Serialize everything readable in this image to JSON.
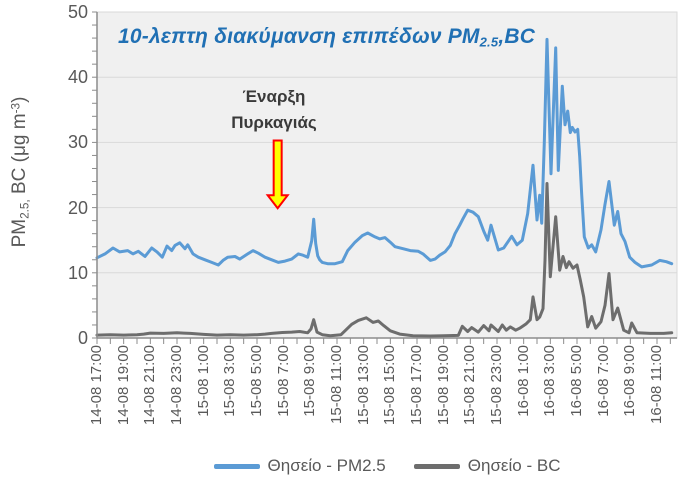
{
  "title": {
    "prefix": "10-λεπτη διακύμανση επιπέδων PM",
    "subscript": "2.5",
    "suffix": ",BC"
  },
  "annotation": {
    "line1": "Έναρξη",
    "line2": "Πυρκαγιάς"
  },
  "y_axis": {
    "label_prefix": "PM",
    "label_subscript": "2.5,",
    "label_mid": " BC  (μg m",
    "label_superscript": "-3",
    "label_close": ")",
    "tick_labels": [
      "0",
      "10",
      "20",
      "30",
      "40",
      "50"
    ],
    "minor_tick_step": 2,
    "max": 50
  },
  "x_axis": {
    "labels": [
      "14-08 17:00",
      "14-08 19:00",
      "14-08 21:00",
      "14-08 23:00",
      "15-08 1:00",
      "15-08 3:00",
      "15-08 5:00",
      "15-08 7:00",
      "15-08 9:00",
      "15-08 11:00",
      "15-08 13:00",
      "15-08 15:00",
      "15-08 17:00",
      "15-08 19:00",
      "15-08 21:00",
      "15-08 23:00",
      "16-08 1:00",
      "16-08 3:00",
      "16-08 5:00",
      "16-08 7:00",
      "16-08 9:00",
      "16-08 11:00"
    ],
    "label_step_hours": 2,
    "minor_tick_step_hours": 1
  },
  "legend": {
    "items": [
      {
        "label": "Θησείο - PM2.5",
        "color": "#5B9BD5"
      },
      {
        "label": "Θησείο - BC",
        "color": "#6D6D6D"
      }
    ]
  },
  "colors": {
    "pm25_line": "#5B9BD5",
    "bc_line": "#6D6D6D",
    "title_text": "#2070B4",
    "plot_background": "#F0F0F0",
    "gridline": "#D9D9D9",
    "axis_line": "#8C8C8C",
    "tick_label": "#595959",
    "annotation_text": "#3A3A3A",
    "arrow_fill": "#FFFF00",
    "arrow_stroke": "#FF0000"
  },
  "chart_data": {
    "type": "line",
    "title": "10-λεπτη διακύμανση επιπέδων PM2.5,BC",
    "ylabel": "PM2.5, BC (μg m-3)",
    "x_unit": "hours since 14-08 17:00 (10-min data)",
    "x_range": [
      0,
      43.5
    ],
    "ylim": [
      0,
      50
    ],
    "grid": "horizontal",
    "legend_position": "bottom",
    "series": [
      {
        "name": "Θησείο - PM2.5",
        "color": "#5B9BD5",
        "points": [
          [
            0,
            12.3
          ],
          [
            0.6,
            12.9
          ],
          [
            1.2,
            13.8
          ],
          [
            1.7,
            13.2
          ],
          [
            2.3,
            13.4
          ],
          [
            2.7,
            12.9
          ],
          [
            3.1,
            13.3
          ],
          [
            3.6,
            12.5
          ],
          [
            4.1,
            13.8
          ],
          [
            4.5,
            13.2
          ],
          [
            4.9,
            12.4
          ],
          [
            5.25,
            14.1
          ],
          [
            5.6,
            13.4
          ],
          [
            5.85,
            14.2
          ],
          [
            6.2,
            14.6
          ],
          [
            6.6,
            13.7
          ],
          [
            6.8,
            14.3
          ],
          [
            7.2,
            12.9
          ],
          [
            7.6,
            12.4
          ],
          [
            8.1,
            12.0
          ],
          [
            8.6,
            11.6
          ],
          [
            9.1,
            11.2
          ],
          [
            9.45,
            11.9
          ],
          [
            9.8,
            12.4
          ],
          [
            10.35,
            12.5
          ],
          [
            10.7,
            12.1
          ],
          [
            11.3,
            12.9
          ],
          [
            11.7,
            13.4
          ],
          [
            12.1,
            13.0
          ],
          [
            12.6,
            12.4
          ],
          [
            13.1,
            12.0
          ],
          [
            13.6,
            11.6
          ],
          [
            14.1,
            11.8
          ],
          [
            14.6,
            12.1
          ],
          [
            15.1,
            12.9
          ],
          [
            15.45,
            12.7
          ],
          [
            15.8,
            12.4
          ],
          [
            16.1,
            14.9
          ],
          [
            16.25,
            18.2
          ],
          [
            16.4,
            14.5
          ],
          [
            16.55,
            12.6
          ],
          [
            16.7,
            12.0
          ],
          [
            16.9,
            11.6
          ],
          [
            17.3,
            11.4
          ],
          [
            17.85,
            11.4
          ],
          [
            18.4,
            11.7
          ],
          [
            18.8,
            13.4
          ],
          [
            19.35,
            14.7
          ],
          [
            19.9,
            15.7
          ],
          [
            20.3,
            16.1
          ],
          [
            20.85,
            15.5
          ],
          [
            21.2,
            15.2
          ],
          [
            21.6,
            15.4
          ],
          [
            22.0,
            14.7
          ],
          [
            22.35,
            14.0
          ],
          [
            22.95,
            13.7
          ],
          [
            23.5,
            13.4
          ],
          [
            24.1,
            13.3
          ],
          [
            24.45,
            12.9
          ],
          [
            25.0,
            11.9
          ],
          [
            25.35,
            12.1
          ],
          [
            25.7,
            12.7
          ],
          [
            26.1,
            13.2
          ],
          [
            26.5,
            14.2
          ],
          [
            26.85,
            16.0
          ],
          [
            27.2,
            17.3
          ],
          [
            27.45,
            18.3
          ],
          [
            27.8,
            19.6
          ],
          [
            28.2,
            19.3
          ],
          [
            28.6,
            18.6
          ],
          [
            29.0,
            16.4
          ],
          [
            29.3,
            15.0
          ],
          [
            29.55,
            17.3
          ],
          [
            30.1,
            13.5
          ],
          [
            30.5,
            13.8
          ],
          [
            31.1,
            15.6
          ],
          [
            31.5,
            14.3
          ],
          [
            31.9,
            15.0
          ],
          [
            32.3,
            19.1
          ],
          [
            32.7,
            26.5
          ],
          [
            33.0,
            18.1
          ],
          [
            33.2,
            21.9
          ],
          [
            33.35,
            17.6
          ],
          [
            33.55,
            30.0
          ],
          [
            33.75,
            45.8
          ],
          [
            34.05,
            25.2
          ],
          [
            34.4,
            44.5
          ],
          [
            34.6,
            25.7
          ],
          [
            34.9,
            38.6
          ],
          [
            35.1,
            32.7
          ],
          [
            35.3,
            34.8
          ],
          [
            35.5,
            31.5
          ],
          [
            35.65,
            32.3
          ],
          [
            35.85,
            31.6
          ],
          [
            36.05,
            32.0
          ],
          [
            36.2,
            27.8
          ],
          [
            36.35,
            22.0
          ],
          [
            36.55,
            15.5
          ],
          [
            36.85,
            13.8
          ],
          [
            37.1,
            14.3
          ],
          [
            37.4,
            13.2
          ],
          [
            37.8,
            16.6
          ],
          [
            38.1,
            20.5
          ],
          [
            38.4,
            24.0
          ],
          [
            38.8,
            17.3
          ],
          [
            39.05,
            19.4
          ],
          [
            39.3,
            16.0
          ],
          [
            39.6,
            14.8
          ],
          [
            39.95,
            12.4
          ],
          [
            40.35,
            11.6
          ],
          [
            40.85,
            10.9
          ],
          [
            41.6,
            11.2
          ],
          [
            42.2,
            11.9
          ],
          [
            42.7,
            11.7
          ],
          [
            43.1,
            11.4
          ]
        ]
      },
      {
        "name": "Θησείο - BC",
        "color": "#6D6D6D",
        "points": [
          [
            0,
            0.45
          ],
          [
            1,
            0.5
          ],
          [
            2,
            0.45
          ],
          [
            3,
            0.5
          ],
          [
            3.5,
            0.6
          ],
          [
            4,
            0.75
          ],
          [
            5,
            0.7
          ],
          [
            6,
            0.8
          ],
          [
            6.5,
            0.75
          ],
          [
            7,
            0.7
          ],
          [
            8,
            0.55
          ],
          [
            9,
            0.45
          ],
          [
            10,
            0.5
          ],
          [
            11,
            0.45
          ],
          [
            12,
            0.5
          ],
          [
            12.6,
            0.6
          ],
          [
            13.1,
            0.7
          ],
          [
            13.9,
            0.85
          ],
          [
            14.6,
            0.9
          ],
          [
            15.2,
            1.0
          ],
          [
            15.8,
            0.8
          ],
          [
            16.05,
            1.4
          ],
          [
            16.25,
            2.8
          ],
          [
            16.5,
            0.9
          ],
          [
            16.9,
            0.5
          ],
          [
            17.5,
            0.35
          ],
          [
            18.3,
            0.5
          ],
          [
            19.1,
            2.1
          ],
          [
            19.6,
            2.7
          ],
          [
            20.2,
            3.1
          ],
          [
            20.7,
            2.4
          ],
          [
            21.1,
            2.6
          ],
          [
            21.5,
            1.9
          ],
          [
            22.0,
            1.1
          ],
          [
            22.7,
            0.6
          ],
          [
            23.7,
            0.35
          ],
          [
            25.0,
            0.3
          ],
          [
            26.0,
            0.35
          ],
          [
            27.1,
            0.4
          ],
          [
            27.4,
            1.8
          ],
          [
            27.8,
            1.0
          ],
          [
            28.1,
            1.6
          ],
          [
            28.6,
            0.9
          ],
          [
            29.0,
            1.9
          ],
          [
            29.4,
            1.1
          ],
          [
            29.55,
            2.0
          ],
          [
            30.1,
            1.0
          ],
          [
            30.4,
            2.0
          ],
          [
            30.7,
            1.2
          ],
          [
            31.0,
            1.7
          ],
          [
            31.4,
            1.2
          ],
          [
            31.7,
            1.5
          ],
          [
            32.2,
            2.2
          ],
          [
            32.5,
            2.8
          ],
          [
            32.7,
            6.3
          ],
          [
            33.0,
            2.8
          ],
          [
            33.2,
            3.2
          ],
          [
            33.45,
            4.5
          ],
          [
            33.6,
            11.9
          ],
          [
            33.75,
            23.7
          ],
          [
            34.0,
            9.4
          ],
          [
            34.4,
            18.6
          ],
          [
            34.7,
            10.4
          ],
          [
            34.95,
            12.5
          ],
          [
            35.2,
            10.8
          ],
          [
            35.4,
            11.7
          ],
          [
            35.7,
            10.7
          ],
          [
            36.0,
            11.2
          ],
          [
            36.25,
            8.9
          ],
          [
            36.5,
            6.3
          ],
          [
            36.8,
            1.7
          ],
          [
            37.1,
            3.3
          ],
          [
            37.4,
            1.5
          ],
          [
            37.8,
            2.5
          ],
          [
            38.1,
            5.0
          ],
          [
            38.4,
            9.9
          ],
          [
            38.7,
            2.8
          ],
          [
            39.05,
            4.6
          ],
          [
            39.5,
            1.2
          ],
          [
            39.9,
            0.8
          ],
          [
            40.1,
            2.3
          ],
          [
            40.5,
            0.8
          ],
          [
            41.5,
            0.7
          ],
          [
            42.5,
            0.7
          ],
          [
            43.1,
            0.8
          ]
        ]
      }
    ],
    "annotation": {
      "text": [
        "Έναρξη",
        "Πυρκαγιάς"
      ],
      "arrow_t": 13.55,
      "arrow_value_from": 30.3,
      "arrow_value_to": 19.9
    }
  }
}
